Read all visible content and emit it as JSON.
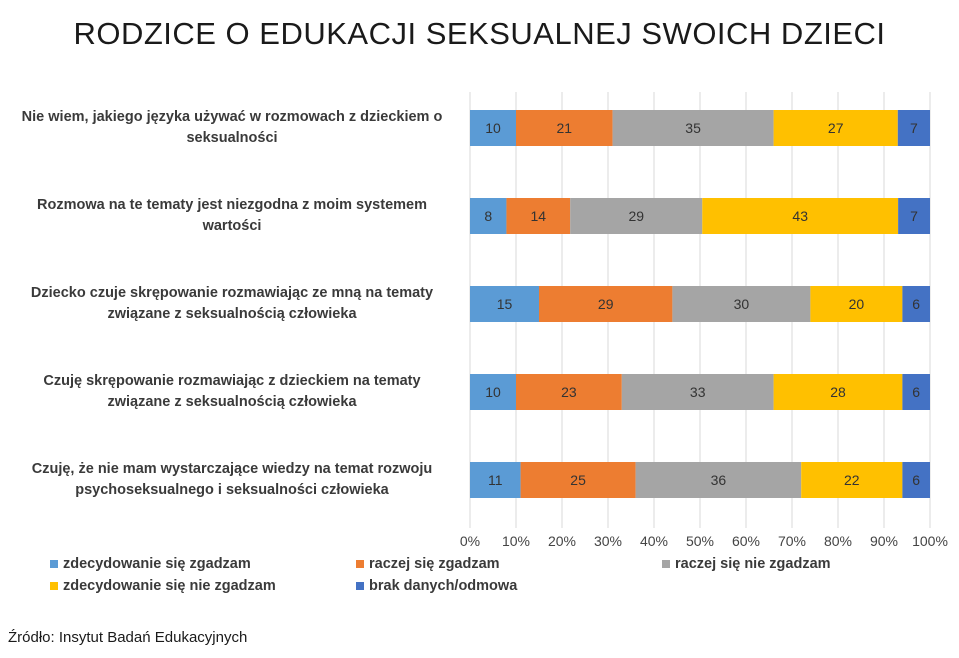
{
  "chart_data": {
    "type": "bar",
    "orientation": "horizontal",
    "stacked": "percent",
    "title": "RODZICE O EDUKACJI SEKSUALNEJ SWOICH DZIECI",
    "categories": [
      [
        "Nie wiem, jakiego języka używać w rozmowach z dzieckiem o",
        "seksualności"
      ],
      [
        "Rozmowa na te tematy jest niezgodna z moim systemem",
        "wartości"
      ],
      [
        "Dziecko czuje skrępowanie rozmawiając ze mną na tematy",
        "związane z seksualnością człowieka"
      ],
      [
        "Czuję skrępowanie rozmawiając z dzieckiem na tematy",
        "związane z seksualnością człowieka"
      ],
      [
        "Czuję, że nie mam wystarczające wiedzy na temat rozwoju",
        "psychoseksualnego i seksualności człowieka"
      ]
    ],
    "series": [
      {
        "name": "zdecydowanie się zgadzam",
        "color": "#5b9bd5",
        "values": [
          10,
          8,
          15,
          10,
          11
        ]
      },
      {
        "name": "raczej się zgadzam",
        "color": "#ed7d31",
        "values": [
          21,
          14,
          29,
          23,
          25
        ]
      },
      {
        "name": "raczej się nie zgadzam",
        "color": "#a5a5a5",
        "values": [
          35,
          29,
          30,
          33,
          36
        ]
      },
      {
        "name": "zdecydowanie się nie zgadzam",
        "color": "#ffc000",
        "values": [
          27,
          43,
          20,
          28,
          22
        ]
      },
      {
        "name": "brak danych/odmowa",
        "color": "#4472c4",
        "values": [
          7,
          7,
          6,
          6,
          6
        ]
      }
    ],
    "xticks": [
      "0%",
      "10%",
      "20%",
      "30%",
      "40%",
      "50%",
      "60%",
      "70%",
      "80%",
      "90%",
      "100%"
    ],
    "xlim": [
      0,
      100
    ],
    "grid": true,
    "legend_position": "bottom"
  },
  "source": "Źródło: Insytut Badań Edukacyjnych"
}
